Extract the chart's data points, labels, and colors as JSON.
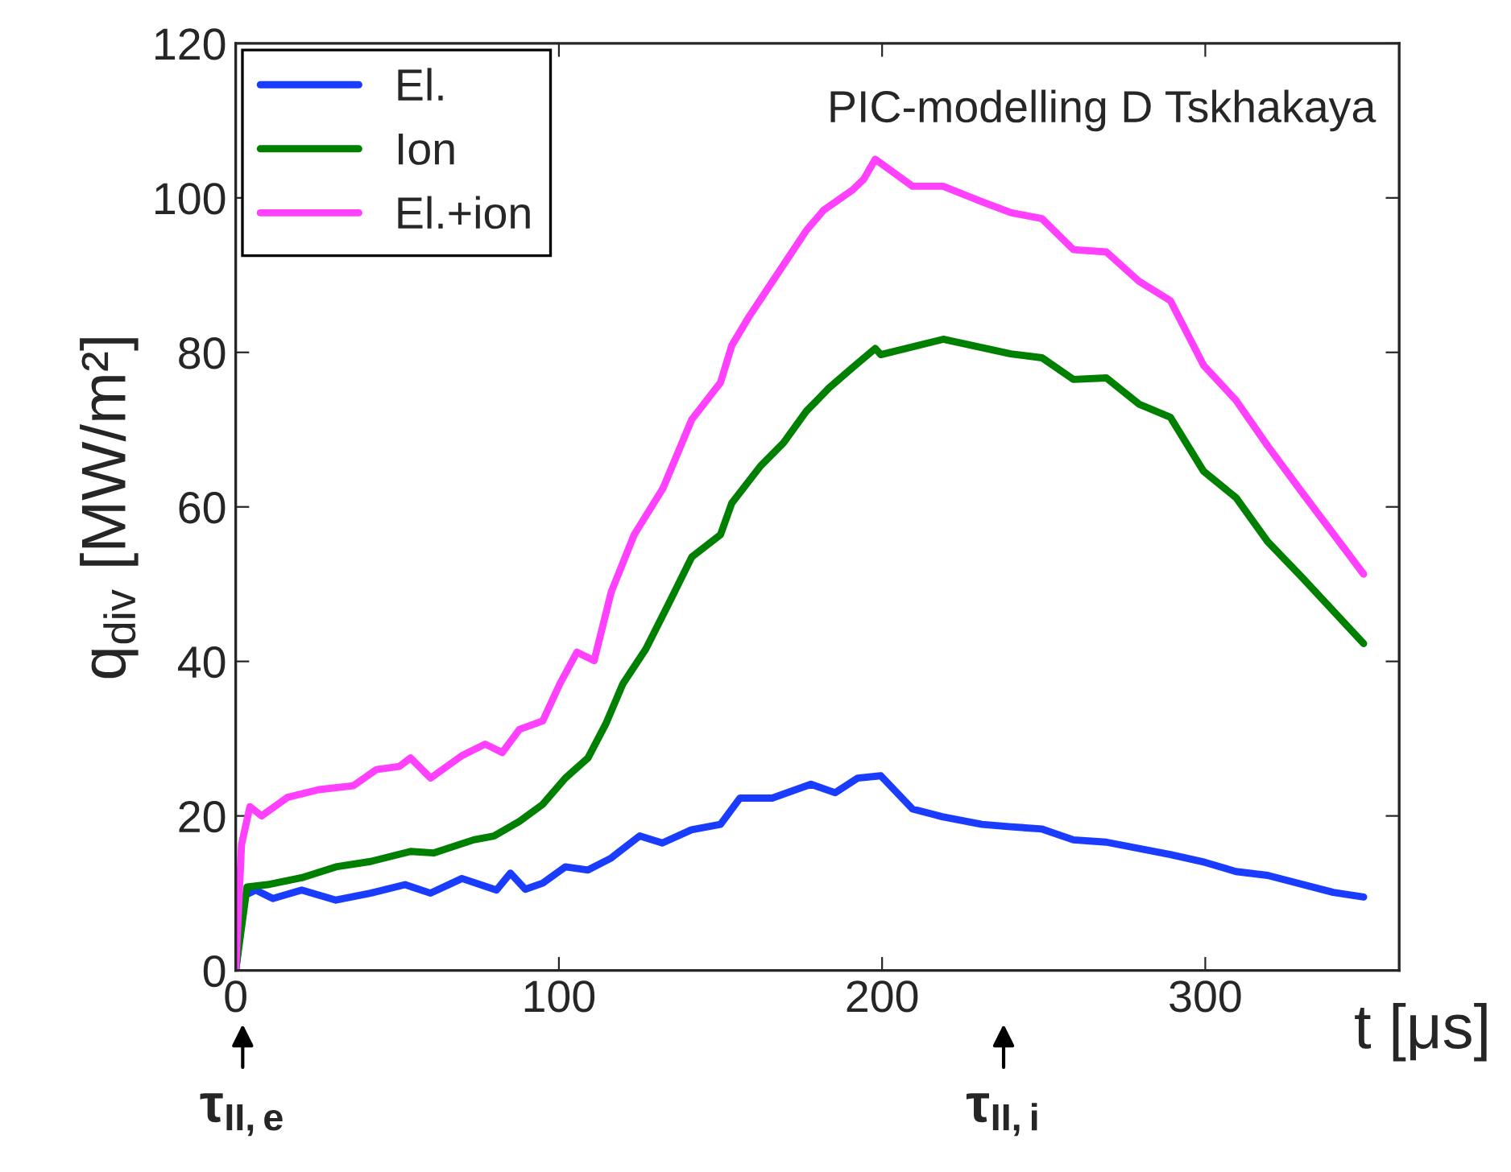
{
  "chart_data": {
    "type": "line",
    "xlabel": "t [μs]",
    "ylabel": "q$_{div}$ [MW/m²]",
    "xlim": [
      0,
      360
    ],
    "xticks": [
      0,
      100,
      200,
      300
    ],
    "ylim": [
      0,
      120
    ],
    "yticks": [
      0,
      20,
      40,
      60,
      80,
      100,
      120
    ],
    "grid": false,
    "legend": "top left",
    "marker": "none",
    "line_style": "solid",
    "annotations": [
      "PIC-modelling D Tskhakaya",
      "τ$_{II,e}$",
      "τ$_{II,i}$"
    ],
    "series": [
      {
        "name": "El.",
        "color": "#1a3cff",
        "x": [
          0,
          2.7,
          6.2,
          11.5,
          20.4,
          31,
          41.7,
          52.4,
          60.3,
          70,
          80.7,
          85,
          89.6,
          95,
          102,
          109,
          116,
          125,
          132,
          141,
          150,
          156,
          166,
          178,
          185.5,
          192.5,
          199.6,
          209.4,
          218.6,
          230.9,
          239.8,
          249.5,
          259.2,
          269.4,
          289.2,
          299.8,
          309.5,
          319.3,
          339.6,
          349
        ],
        "values": [
          0,
          9.7,
          10.4,
          9.3,
          10.4,
          9.1,
          10,
          11.1,
          10,
          11.9,
          10.4,
          12.6,
          10.5,
          11.3,
          13.4,
          13,
          14.5,
          17.4,
          16.5,
          18.2,
          18.9,
          22.3,
          22.3,
          24.1,
          23,
          24.9,
          25.2,
          20.9,
          19.9,
          18.9,
          18.6,
          18.3,
          16.9,
          16.6,
          15,
          14,
          12.8,
          12.3,
          10.1,
          9.5
        ]
      },
      {
        "name": "Ion",
        "color": "#008000",
        "x": [
          0,
          3.5,
          9.8,
          20.4,
          31,
          41.7,
          54.1,
          61.2,
          73.6,
          79.9,
          87.8,
          95,
          102,
          109,
          114.5,
          119.8,
          126.9,
          134,
          141.1,
          150,
          153.5,
          162.4,
          169.5,
          176.6,
          183.6,
          190.8,
          197.9,
          199.6,
          218.9,
          239.8,
          249.5,
          259.2,
          269.4,
          279.5,
          289.2,
          299.5,
          309.5,
          319.3,
          329.9,
          349
        ],
        "values": [
          0,
          10.8,
          11.1,
          12,
          13.4,
          14.1,
          15.4,
          15.2,
          16.9,
          17.4,
          19.3,
          21.5,
          24.9,
          27.5,
          31.9,
          37.1,
          41.6,
          47.5,
          53.5,
          56.4,
          60.5,
          65.3,
          68.3,
          72.4,
          75.4,
          78,
          80.5,
          79.7,
          81.7,
          79.8,
          79.3,
          76.5,
          76.7,
          73.3,
          71.6,
          64.6,
          61.2,
          55.5,
          50.9,
          42.3
        ]
      },
      {
        "name": "El.+ion",
        "color": "#ff40ff",
        "x": [
          0,
          1.8,
          4.4,
          8,
          16,
          25.7,
          36.4,
          43.5,
          50.6,
          54.1,
          60.3,
          70,
          77.2,
          82.5,
          87.8,
          95,
          100.3,
          105.6,
          110.9,
          116.2,
          123.3,
          132.2,
          141.1,
          150,
          153.5,
          158.8,
          164.2,
          171.2,
          176.6,
          181.9,
          190.8,
          194.3,
          197.9,
          209.4,
          218.9,
          230.9,
          239.8,
          249.5,
          259.2,
          269.4,
          279.5,
          289.2,
          299.5,
          309.5,
          319.3,
          329.9,
          349
        ],
        "values": [
          0,
          16.3,
          21.2,
          20,
          22.4,
          23.4,
          23.9,
          26,
          26.4,
          27.5,
          24.9,
          27.8,
          29.3,
          28.2,
          31.2,
          32.3,
          37.1,
          41.2,
          40.1,
          49,
          56.4,
          62.4,
          71.3,
          76.1,
          80.9,
          84.6,
          88,
          92.4,
          95.8,
          98.4,
          101,
          102.4,
          105,
          101.5,
          101.5,
          99.5,
          98.1,
          97.3,
          93.3,
          93,
          89.2,
          86.7,
          78.3,
          73.8,
          67.9,
          61.9,
          51.3
        ]
      }
    ]
  }
}
